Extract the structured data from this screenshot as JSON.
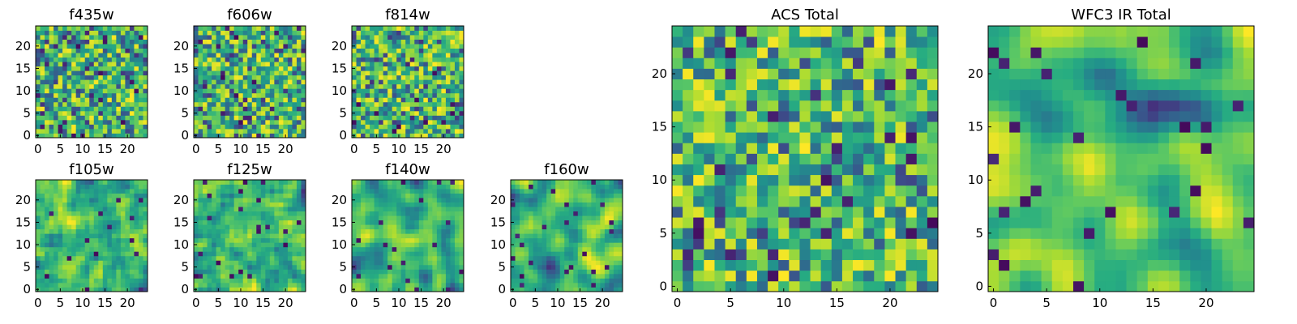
{
  "chart_data": [
    {
      "type": "heatmap",
      "title": "f435w",
      "colormap": "viridis",
      "grid_size": 25,
      "seed": 11,
      "smoothness": 0,
      "x_ticks": [
        0,
        5,
        10,
        15,
        20
      ],
      "y_ticks": [
        0,
        5,
        10,
        15,
        20
      ],
      "xlim": [
        -0.5,
        24.5
      ],
      "ylim": [
        -0.5,
        24.5
      ]
    },
    {
      "type": "heatmap",
      "title": "f606w",
      "colormap": "viridis",
      "grid_size": 25,
      "seed": 23,
      "smoothness": 0,
      "x_ticks": [
        0,
        5,
        10,
        15,
        20
      ],
      "y_ticks": [
        0,
        5,
        10,
        15,
        20
      ],
      "xlim": [
        -0.5,
        24.5
      ],
      "ylim": [
        -0.5,
        24.5
      ]
    },
    {
      "type": "heatmap",
      "title": "f814w",
      "colormap": "viridis",
      "grid_size": 25,
      "seed": 37,
      "smoothness": 0,
      "x_ticks": [
        0,
        5,
        10,
        15,
        20
      ],
      "y_ticks": [
        0,
        5,
        10,
        15,
        20
      ],
      "xlim": [
        -0.5,
        24.5
      ],
      "ylim": [
        -0.5,
        24.5
      ]
    },
    {
      "type": "heatmap",
      "title": "f105w",
      "colormap": "viridis",
      "grid_size": 25,
      "seed": 41,
      "smoothness": 1,
      "x_ticks": [
        0,
        5,
        10,
        15,
        20
      ],
      "y_ticks": [
        0,
        5,
        10,
        15,
        20
      ],
      "xlim": [
        -0.5,
        24.5
      ],
      "ylim": [
        -0.5,
        24.5
      ]
    },
    {
      "type": "heatmap",
      "title": "f125w",
      "colormap": "viridis",
      "grid_size": 25,
      "seed": 53,
      "smoothness": 1,
      "x_ticks": [
        0,
        5,
        10,
        15,
        20
      ],
      "y_ticks": [
        0,
        5,
        10,
        15,
        20
      ],
      "xlim": [
        -0.5,
        24.5
      ],
      "ylim": [
        -0.5,
        24.5
      ]
    },
    {
      "type": "heatmap",
      "title": "f140w",
      "colormap": "viridis",
      "grid_size": 25,
      "seed": 67,
      "smoothness": 2,
      "x_ticks": [
        0,
        5,
        10,
        15,
        20
      ],
      "y_ticks": [
        0,
        5,
        10,
        15,
        20
      ],
      "xlim": [
        -0.5,
        24.5
      ],
      "ylim": [
        -0.5,
        24.5
      ]
    },
    {
      "type": "heatmap",
      "title": "f160w",
      "colormap": "viridis",
      "grid_size": 25,
      "seed": 79,
      "smoothness": 2,
      "x_ticks": [
        0,
        5,
        10,
        15,
        20
      ],
      "y_ticks": [
        0,
        5,
        10,
        15,
        20
      ],
      "xlim": [
        -0.5,
        24.5
      ],
      "ylim": [
        -0.5,
        24.5
      ]
    },
    {
      "type": "heatmap",
      "title": "ACS Total",
      "colormap": "viridis",
      "grid_size": 25,
      "seed": 83,
      "smoothness": 0,
      "x_ticks": [
        0,
        5,
        10,
        15,
        20
      ],
      "y_ticks": [
        0,
        5,
        10,
        15,
        20
      ],
      "xlim": [
        -0.5,
        24.5
      ],
      "ylim": [
        -0.5,
        24.5
      ]
    },
    {
      "type": "heatmap",
      "title": "WFC3 IR Total",
      "colormap": "viridis",
      "grid_size": 25,
      "seed": 97,
      "smoothness": 3,
      "x_ticks": [
        0,
        5,
        10,
        15,
        20
      ],
      "y_ticks": [
        0,
        5,
        10,
        15,
        20
      ],
      "xlim": [
        -0.5,
        24.5
      ],
      "ylim": [
        -0.5,
        24.5
      ]
    }
  ]
}
